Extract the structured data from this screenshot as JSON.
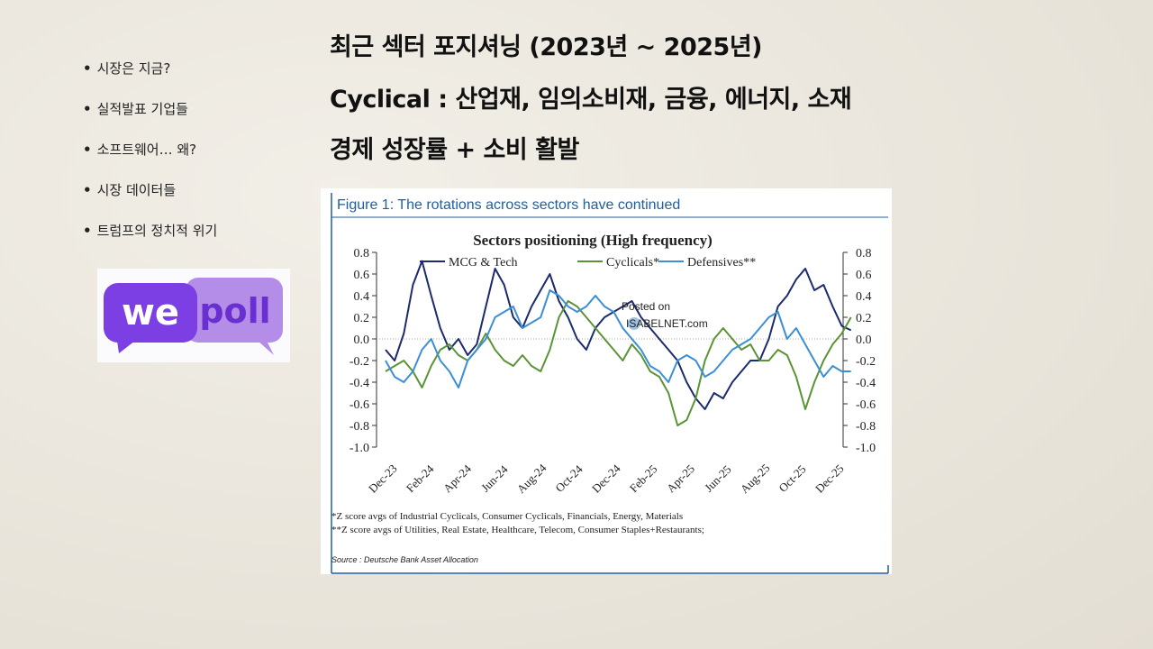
{
  "bullets": [
    {
      "dot": "•",
      "text": "시장은 지금?"
    },
    {
      "dot": "•",
      "text": "실적발표 기업들"
    },
    {
      "dot": "•",
      "text": "소프트웨어… 왜?"
    },
    {
      "dot": "•",
      "text": "시장 데이터들"
    },
    {
      "dot": "•",
      "text": "트럼프의 정치적 위기"
    }
  ],
  "logo": {
    "we": "we",
    "poll": "poll"
  },
  "headlines": {
    "line1": "최근 섹터 포지셔닝 (2023년 ~ 2025년)",
    "line2": "Cyclical : 산업재, 임의소비재, 금융, 에너지, 소재",
    "line3": "경제 성장률 + 소비 활발"
  },
  "colors": {
    "accent": "#1f5fa0",
    "mcg": "#1c2a6e",
    "cyc": "#5a9435",
    "def": "#3c8fd6",
    "logo": "#7b3fe4"
  },
  "figure": {
    "title": "Figure 1: The rotations across sectors have continued",
    "watermark_line1": "Posted on",
    "watermark_line2": "ISABELNET.com",
    "footnote1": "*Z score avgs of Industrial Cyclicals, Consumer Cyclicals, Financials, Energy, Materials",
    "footnote2": "**Z score avgs of Utilities, Real Estate, Healthcare, Telecom, Consumer Staples+Restaurants;",
    "source": "Source : Deutsche Bank Asset Allocation"
  },
  "chart_data": {
    "type": "line",
    "title": "Sectors positioning (High frequency)",
    "ylim": [
      -1.0,
      0.8
    ],
    "y_ticks": [
      "0.8",
      "0.6",
      "0.4",
      "0.2",
      "0.0",
      "-0.2",
      "-0.4",
      "-0.6",
      "-0.8",
      "-1.0"
    ],
    "x_ticks": [
      "Dec-23",
      "Feb-24",
      "Apr-24",
      "Jun-24",
      "Aug-24",
      "Oct-24",
      "Dec-24",
      "Feb-25",
      "Apr-25",
      "Jun-25",
      "Aug-25",
      "Oct-25",
      "Dec-25"
    ],
    "x_start_month": "Dec-23",
    "series": [
      {
        "name": "MCG & Tech",
        "color": "#1c2a6e",
        "values": [
          -0.1,
          -0.2,
          0.05,
          0.5,
          0.72,
          0.4,
          0.1,
          -0.1,
          0.0,
          -0.15,
          -0.05,
          0.3,
          0.65,
          0.5,
          0.2,
          0.1,
          0.3,
          0.45,
          0.6,
          0.35,
          0.2,
          0.0,
          -0.1,
          0.1,
          0.2,
          0.25,
          0.3,
          0.35,
          0.2,
          0.1,
          0.0,
          -0.1,
          -0.2,
          -0.4,
          -0.55,
          -0.65,
          -0.5,
          -0.55,
          -0.4,
          -0.3,
          -0.2,
          -0.2,
          0.0,
          0.3,
          0.4,
          0.55,
          0.65,
          0.45,
          0.5,
          0.3,
          0.12,
          0.08
        ]
      },
      {
        "name": "Cyclicals*",
        "color": "#5a9435",
        "values": [
          -0.3,
          -0.25,
          -0.2,
          -0.3,
          -0.45,
          -0.25,
          -0.1,
          -0.05,
          -0.15,
          -0.2,
          -0.1,
          0.05,
          -0.1,
          -0.2,
          -0.25,
          -0.15,
          -0.25,
          -0.3,
          -0.1,
          0.2,
          0.35,
          0.3,
          0.2,
          0.1,
          0.0,
          -0.1,
          -0.2,
          -0.05,
          -0.15,
          -0.3,
          -0.35,
          -0.5,
          -0.8,
          -0.75,
          -0.55,
          -0.2,
          0.0,
          0.1,
          0.0,
          -0.1,
          -0.05,
          -0.2,
          -0.2,
          -0.1,
          -0.15,
          -0.35,
          -0.65,
          -0.4,
          -0.2,
          -0.05,
          0.05,
          0.2
        ]
      },
      {
        "name": "Defensives**",
        "color": "#3c8fd6",
        "values": [
          -0.2,
          -0.35,
          -0.4,
          -0.3,
          -0.1,
          0.0,
          -0.2,
          -0.3,
          -0.45,
          -0.2,
          -0.1,
          0.0,
          0.2,
          0.25,
          0.3,
          0.1,
          0.15,
          0.2,
          0.45,
          0.4,
          0.3,
          0.25,
          0.3,
          0.4,
          0.3,
          0.25,
          0.1,
          0.0,
          -0.1,
          -0.25,
          -0.3,
          -0.4,
          -0.2,
          -0.15,
          -0.2,
          -0.35,
          -0.3,
          -0.2,
          -0.1,
          -0.05,
          0.0,
          0.1,
          0.2,
          0.25,
          0.0,
          0.1,
          -0.05,
          -0.2,
          -0.35,
          -0.25,
          -0.3,
          -0.3
        ]
      }
    ],
    "grid": false,
    "legend": "top"
  }
}
